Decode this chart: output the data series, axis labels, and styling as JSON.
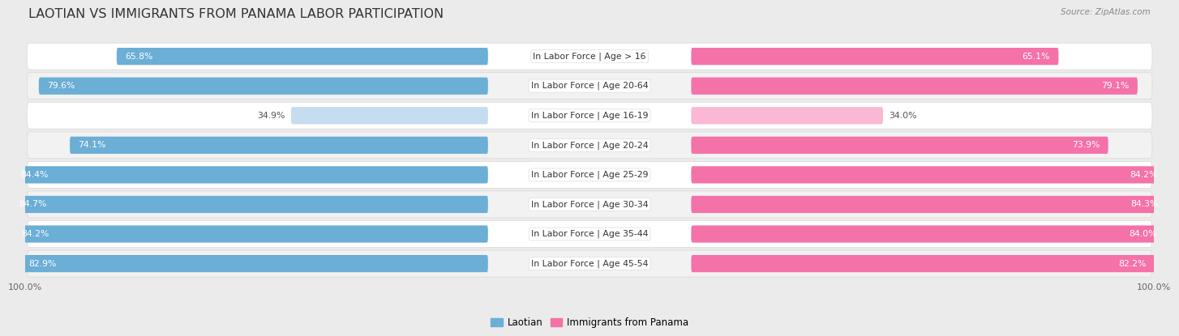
{
  "title": "LAOTIAN VS IMMIGRANTS FROM PANAMA LABOR PARTICIPATION",
  "source": "Source: ZipAtlas.com",
  "categories": [
    "In Labor Force | Age > 16",
    "In Labor Force | Age 20-64",
    "In Labor Force | Age 16-19",
    "In Labor Force | Age 20-24",
    "In Labor Force | Age 25-29",
    "In Labor Force | Age 30-34",
    "In Labor Force | Age 35-44",
    "In Labor Force | Age 45-54"
  ],
  "laotian_values": [
    65.8,
    79.6,
    34.9,
    74.1,
    84.4,
    84.7,
    84.2,
    82.9
  ],
  "panama_values": [
    65.1,
    79.1,
    34.0,
    73.9,
    84.2,
    84.3,
    84.0,
    82.2
  ],
  "laotian_color": "#6BAED6",
  "laotian_color_light": "#C6DCEF",
  "panama_color": "#F472A8",
  "panama_color_light": "#FAB8D4",
  "background_color": "#EBEBEB",
  "row_bg_even": "#FFFFFF",
  "row_bg_odd": "#F2F2F2",
  "row_border_color": "#D8D8D8",
  "max_value": 100.0,
  "title_fontsize": 11.5,
  "label_fontsize": 7.8,
  "value_fontsize": 7.8,
  "legend_fontsize": 8.5,
  "source_fontsize": 7.5
}
